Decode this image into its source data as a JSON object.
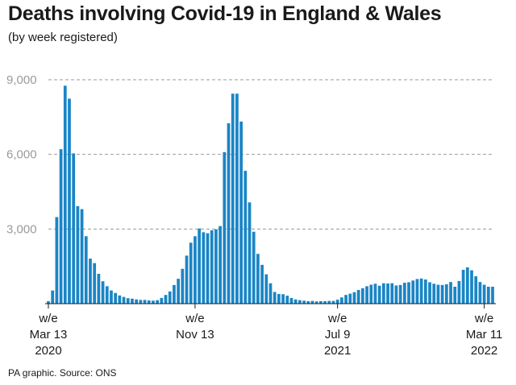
{
  "title": "Deaths involving Covid-19 in England & Wales",
  "subtitle": "(by week registered)",
  "source": "PA graphic. Source: ONS",
  "chart_data": {
    "type": "bar",
    "title": "Deaths involving Covid-19 in England & Wales",
    "subtitle": "(by week registered)",
    "bar_color": "#1a85c6",
    "ylim": [
      0,
      9000
    ],
    "grid": true,
    "y_ticks": [
      {
        "value": 3000,
        "label": "3,000"
      },
      {
        "value": 6000,
        "label": "6,000"
      },
      {
        "value": 9000,
        "label": "9,000"
      }
    ],
    "x_ticks": [
      {
        "index": 0,
        "lines": [
          "w/e",
          "Mar 13",
          "2020"
        ]
      },
      {
        "index": 35,
        "lines": [
          "w/e",
          "Nov 13"
        ]
      },
      {
        "index": 69,
        "lines": [
          "w/e",
          "Jul 9",
          "2021"
        ]
      },
      {
        "index": 104,
        "lines": [
          "w/e",
          "Mar 11",
          "2022"
        ]
      }
    ],
    "values": [
      100,
      530,
      3480,
      6210,
      8760,
      8240,
      6040,
      3920,
      3800,
      2710,
      1810,
      1630,
      1200,
      900,
      700,
      530,
      430,
      330,
      270,
      220,
      200,
      170,
      150,
      150,
      130,
      120,
      140,
      230,
      350,
      490,
      750,
      1000,
      1400,
      1930,
      2450,
      2710,
      3020,
      2870,
      2830,
      2950,
      2990,
      3120,
      6090,
      7250,
      8440,
      8440,
      7320,
      5340,
      4070,
      2890,
      2000,
      1560,
      1180,
      820,
      470,
      390,
      380,
      320,
      230,
      170,
      140,
      120,
      100,
      110,
      90,
      100,
      100,
      110,
      110,
      160,
      250,
      350,
      400,
      460,
      550,
      620,
      700,
      760,
      800,
      720,
      820,
      810,
      820,
      730,
      750,
      840,
      860,
      930,
      990,
      1010,
      970,
      860,
      800,
      760,
      750,
      780,
      870,
      680,
      910,
      1360,
      1460,
      1340,
      1100,
      870,
      760,
      680,
      680
    ]
  }
}
